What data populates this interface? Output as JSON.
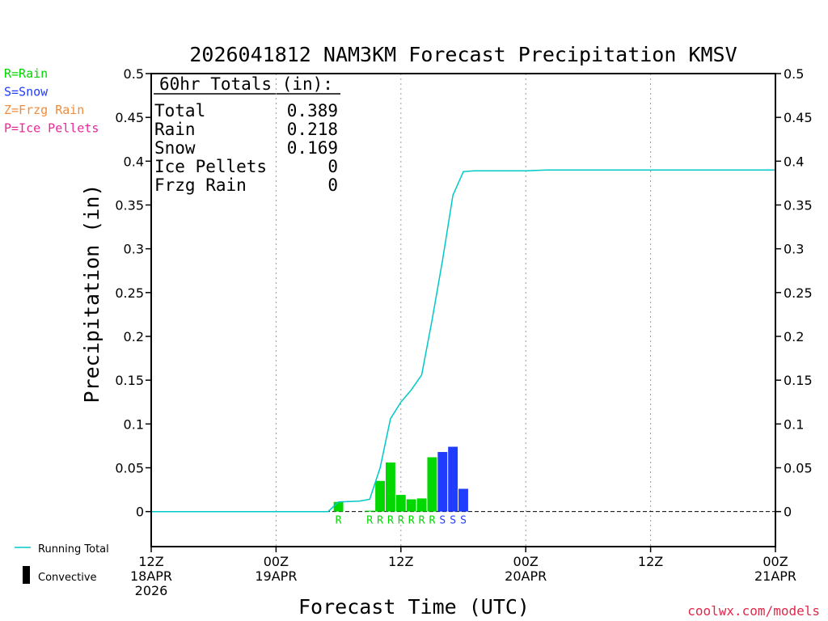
{
  "chart_data": {
    "type": "bar",
    "title": "2026041812 NAM3KM Forecast Precipitation KMSV",
    "xlabel": "Forecast Time (UTC)",
    "ylabel": "Precipitation (in)",
    "ylim": [
      -0.04,
      0.5
    ],
    "xlim": [
      0,
      60
    ],
    "yticks": [
      0,
      0.05,
      0.1,
      0.15,
      0.2,
      0.25,
      0.3,
      0.35,
      0.4,
      0.45,
      0.5
    ],
    "ytick_labels": [
      "0",
      "0.05",
      "0.1",
      "0.15",
      "0.2",
      "0.25",
      "0.3",
      "0.35",
      "0.4",
      "0.45",
      "0.5"
    ],
    "xticks": [
      {
        "hour": 0,
        "lines": [
          "12Z",
          "18APR",
          "2026"
        ]
      },
      {
        "hour": 12,
        "lines": [
          "00Z",
          "19APR"
        ]
      },
      {
        "hour": 24,
        "lines": [
          "12Z"
        ]
      },
      {
        "hour": 36,
        "lines": [
          "00Z",
          "20APR"
        ]
      },
      {
        "hour": 48,
        "lines": [
          "12Z"
        ]
      },
      {
        "hour": 60,
        "lines": [
          "00Z",
          "21APR"
        ]
      }
    ],
    "bars": [
      {
        "hour": 18,
        "value": 0.011,
        "type": "R"
      },
      {
        "hour": 21,
        "value": 0.001,
        "type": "R"
      },
      {
        "hour": 22,
        "value": 0.035,
        "type": "R"
      },
      {
        "hour": 23,
        "value": 0.056,
        "type": "R"
      },
      {
        "hour": 24,
        "value": 0.019,
        "type": "R"
      },
      {
        "hour": 25,
        "value": 0.014,
        "type": "R"
      },
      {
        "hour": 26,
        "value": 0.015,
        "type": "R"
      },
      {
        "hour": 27,
        "value": 0.062,
        "type": "R"
      },
      {
        "hour": 28,
        "value": 0.068,
        "type": "S"
      },
      {
        "hour": 29,
        "value": 0.074,
        "type": "S"
      },
      {
        "hour": 30,
        "value": 0.026,
        "type": "S"
      }
    ],
    "running_total": {
      "hours": [
        0,
        17,
        18,
        20,
        21,
        22,
        23,
        24,
        25,
        26,
        27,
        28,
        29,
        30,
        31,
        33,
        36,
        38,
        48,
        60
      ],
      "values": [
        0,
        0,
        0.011,
        0.012,
        0.014,
        0.05,
        0.106,
        0.125,
        0.139,
        0.156,
        0.219,
        0.287,
        0.361,
        0.388,
        0.389,
        0.389,
        0.389,
        0.39,
        0.39,
        0.39
      ]
    },
    "totals_box": {
      "header": "60hr Totals (in):",
      "rows": [
        {
          "label": "Total",
          "value": "0.389"
        },
        {
          "label": "Rain",
          "value": "0.218"
        },
        {
          "label": "Snow",
          "value": "0.169"
        },
        {
          "label": "Ice Pellets",
          "value": "0"
        },
        {
          "label": "Frzg Rain",
          "value": "0"
        }
      ]
    },
    "type_legend": [
      {
        "text": "R=Rain",
        "color": "#00d800"
      },
      {
        "text": "S=Snow",
        "color": "#1f3cff"
      },
      {
        "text": "Z=Frzg Rain",
        "color": "#f08c3c"
      },
      {
        "text": "P=Ice Pellets",
        "color": "#e8289a"
      }
    ],
    "legend": [
      {
        "text": "Running Total",
        "style": "line",
        "color": "#00c8c8"
      },
      {
        "text": "Convective",
        "style": "block",
        "color": "#000000"
      }
    ],
    "colors": {
      "R": "#00d800",
      "S": "#1f3cff",
      "Z": "#f08c3c",
      "P": "#e8289a",
      "running_total": "#00c8c8",
      "credit": "#e0284a"
    },
    "credit": "coolwx.com/models"
  }
}
